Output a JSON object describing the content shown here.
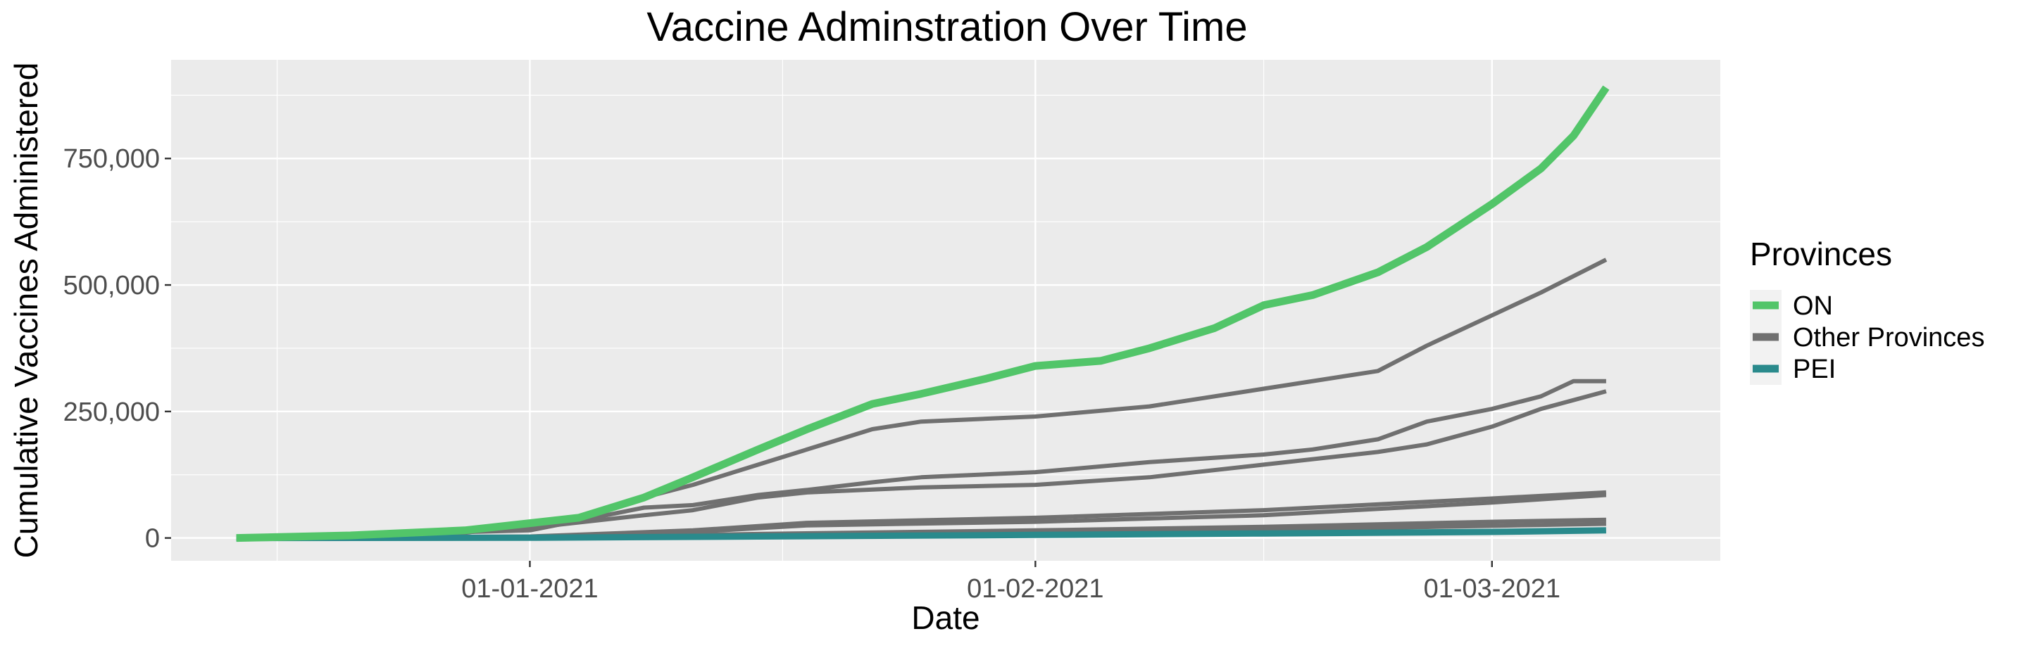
{
  "chart_data": {
    "type": "line",
    "title": "Vaccine Adminstration Over Time",
    "xlabel": "Date",
    "ylabel": "Cumulative Vaccines Administered",
    "x_type": "date",
    "xlim": [
      "2020-12-10",
      "2021-03-15"
    ],
    "ylim": [
      -45000,
      945000
    ],
    "x_ticks": [
      {
        "date": "2021-01-01",
        "label": "01-01-2021"
      },
      {
        "date": "2021-02-01",
        "label": "01-02-2021"
      },
      {
        "date": "2021-03-01",
        "label": "01-03-2021"
      }
    ],
    "y_ticks": [
      {
        "value": 0,
        "label": "0"
      },
      {
        "value": 250000,
        "label": "250,000"
      },
      {
        "value": 500000,
        "label": "500,000"
      },
      {
        "value": 750000,
        "label": "750,000"
      }
    ],
    "grid": true,
    "background": "#ebebeb",
    "legend": {
      "title": "Provinces",
      "position": "right",
      "entries": [
        {
          "label": "ON",
          "color": "#52c569"
        },
        {
          "label": "Other Provinces",
          "color": "#707070"
        },
        {
          "label": "PEI",
          "color": "#2a8a8c"
        }
      ]
    },
    "series": [
      {
        "group": "ON",
        "color": "#52c569",
        "x": [
          "2020-12-14",
          "2020-12-21",
          "2020-12-28",
          "2021-01-04",
          "2021-01-08",
          "2021-01-11",
          "2021-01-15",
          "2021-01-18",
          "2021-01-22",
          "2021-01-25",
          "2021-01-29",
          "2021-02-01",
          "2021-02-05",
          "2021-02-08",
          "2021-02-12",
          "2021-02-15",
          "2021-02-18",
          "2021-02-22",
          "2021-02-25",
          "2021-03-01",
          "2021-03-04",
          "2021-03-06",
          "2021-03-08"
        ],
        "y": [
          0,
          5000,
          15000,
          40000,
          80000,
          120000,
          175000,
          215000,
          265000,
          285000,
          315000,
          340000,
          350000,
          375000,
          415000,
          460000,
          480000,
          525000,
          575000,
          660000,
          730000,
          795000,
          890000
        ]
      },
      {
        "group": "Other Provinces",
        "color": "#707070",
        "x": [
          "2020-12-14",
          "2020-12-28",
          "2021-01-04",
          "2021-01-08",
          "2021-01-11",
          "2021-01-15",
          "2021-01-18",
          "2021-01-22",
          "2021-01-25",
          "2021-02-01",
          "2021-02-08",
          "2021-02-15",
          "2021-02-22",
          "2021-02-25",
          "2021-03-01",
          "2021-03-04",
          "2021-03-08"
        ],
        "y": [
          0,
          10000,
          40000,
          80000,
          105000,
          145000,
          175000,
          215000,
          230000,
          240000,
          260000,
          295000,
          330000,
          380000,
          440000,
          485000,
          550000
        ]
      },
      {
        "group": "Other Provinces",
        "color": "#707070",
        "x": [
          "2020-12-14",
          "2021-01-01",
          "2021-01-08",
          "2021-01-11",
          "2021-01-15",
          "2021-01-18",
          "2021-01-22",
          "2021-01-25",
          "2021-02-01",
          "2021-02-08",
          "2021-02-15",
          "2021-02-18",
          "2021-02-22",
          "2021-02-25",
          "2021-03-01",
          "2021-03-04",
          "2021-03-06",
          "2021-03-08"
        ],
        "y": [
          0,
          15000,
          60000,
          65000,
          85000,
          95000,
          110000,
          120000,
          130000,
          150000,
          165000,
          175000,
          195000,
          230000,
          255000,
          280000,
          310000,
          310000
        ]
      },
      {
        "group": "Other Provinces",
        "color": "#707070",
        "x": [
          "2020-12-14",
          "2021-01-01",
          "2021-01-08",
          "2021-01-11",
          "2021-01-15",
          "2021-01-18",
          "2021-01-25",
          "2021-02-01",
          "2021-02-08",
          "2021-02-15",
          "2021-02-22",
          "2021-02-25",
          "2021-03-01",
          "2021-03-04",
          "2021-03-08"
        ],
        "y": [
          0,
          20000,
          45000,
          55000,
          80000,
          90000,
          100000,
          105000,
          120000,
          145000,
          170000,
          185000,
          220000,
          255000,
          290000
        ]
      },
      {
        "group": "Other Provinces",
        "color": "#707070",
        "x": [
          "2020-12-14",
          "2021-01-01",
          "2021-01-11",
          "2021-01-18",
          "2021-02-01",
          "2021-02-15",
          "2021-03-01",
          "2021-03-08"
        ],
        "y": [
          0,
          3000,
          15000,
          30000,
          40000,
          55000,
          78000,
          90000
        ]
      },
      {
        "group": "Other Provinces",
        "color": "#707070",
        "x": [
          "2020-12-14",
          "2021-01-01",
          "2021-01-11",
          "2021-01-18",
          "2021-02-01",
          "2021-02-15",
          "2021-03-01",
          "2021-03-08"
        ],
        "y": [
          0,
          2000,
          12000,
          25000,
          32000,
          45000,
          70000,
          85000
        ]
      },
      {
        "group": "Other Provinces",
        "color": "#707070",
        "x": [
          "2020-12-14",
          "2021-01-01",
          "2021-01-15",
          "2021-02-01",
          "2021-02-15",
          "2021-03-01",
          "2021-03-08"
        ],
        "y": [
          0,
          1000,
          8000,
          15000,
          22000,
          32000,
          36000
        ]
      },
      {
        "group": "Other Provinces",
        "color": "#707070",
        "x": [
          "2020-12-14",
          "2021-01-01",
          "2021-01-15",
          "2021-02-01",
          "2021-02-15",
          "2021-03-01",
          "2021-03-08"
        ],
        "y": [
          0,
          500,
          5000,
          10000,
          16000,
          24000,
          28000
        ]
      },
      {
        "group": "PEI",
        "color": "#2a8a8c",
        "x": [
          "2020-12-14",
          "2021-01-01",
          "2021-01-15",
          "2021-02-01",
          "2021-02-15",
          "2021-03-01",
          "2021-03-08"
        ],
        "y": [
          0,
          500,
          3000,
          6000,
          9000,
          12000,
          15000
        ]
      }
    ]
  }
}
